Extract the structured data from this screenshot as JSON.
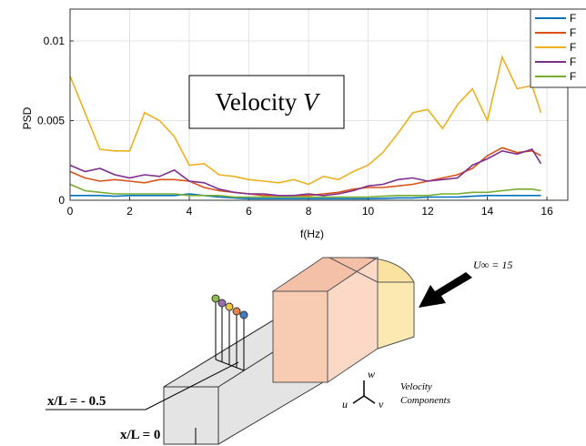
{
  "chart_data": {
    "type": "line",
    "x": [
      0,
      0.5,
      1,
      1.5,
      2,
      2.5,
      3,
      3.5,
      4,
      4.5,
      5,
      5.5,
      6,
      6.5,
      7,
      7.5,
      8,
      8.5,
      9,
      9.5,
      10,
      10.5,
      11,
      11.5,
      12,
      12.5,
      13,
      13.5,
      14,
      14.5,
      15,
      15.5,
      15.8
    ],
    "series": [
      {
        "name": "F",
        "color": "#0072bd",
        "values": [
          0.0003,
          0.0003,
          0.0003,
          0.00025,
          0.0003,
          0.0003,
          0.0003,
          0.0003,
          0.0004,
          0.0003,
          0.0002,
          0.00015,
          0.0001,
          0.0001,
          0.0001,
          0.0001,
          0.0001,
          0.0001,
          0.0001,
          0.0001,
          0.0001,
          0.00012,
          0.00015,
          0.00015,
          0.0002,
          0.0002,
          0.0002,
          0.00025,
          0.0003,
          0.0003,
          0.0003,
          0.0003,
          0.0003
        ]
      },
      {
        "name": "F",
        "color": "#d95319",
        "values": [
          0.0018,
          0.0014,
          0.0012,
          0.0013,
          0.0012,
          0.0011,
          0.0013,
          0.0013,
          0.0012,
          0.0008,
          0.0006,
          0.0005,
          0.0004,
          0.0003,
          0.0003,
          0.0003,
          0.0003,
          0.0004,
          0.0005,
          0.0007,
          0.0008,
          0.0008,
          0.0009,
          0.001,
          0.0012,
          0.0014,
          0.0016,
          0.002,
          0.0028,
          0.0033,
          0.003,
          0.0031,
          0.0028
        ]
      },
      {
        "name": "F",
        "color": "#edb120",
        "values": [
          0.0078,
          0.0055,
          0.0032,
          0.0031,
          0.0031,
          0.0055,
          0.005,
          0.004,
          0.0022,
          0.0023,
          0.0016,
          0.0015,
          0.0013,
          0.0012,
          0.0011,
          0.0013,
          0.001,
          0.0015,
          0.0013,
          0.0018,
          0.0022,
          0.003,
          0.0042,
          0.0055,
          0.0057,
          0.0045,
          0.006,
          0.007,
          0.005,
          0.009,
          0.007,
          0.0072,
          0.0055
        ]
      },
      {
        "name": "F",
        "color": "#7e2f8e",
        "values": [
          0.0022,
          0.0018,
          0.002,
          0.0016,
          0.0014,
          0.0016,
          0.0015,
          0.0019,
          0.0012,
          0.0011,
          0.0007,
          0.0005,
          0.0004,
          0.0004,
          0.0003,
          0.0003,
          0.0004,
          0.0003,
          0.0004,
          0.0006,
          0.0009,
          0.001,
          0.0013,
          0.0014,
          0.0012,
          0.0013,
          0.0014,
          0.0022,
          0.0026,
          0.0031,
          0.0029,
          0.0032,
          0.0023
        ]
      },
      {
        "name": "F",
        "color": "#77ac30",
        "values": [
          0.001,
          0.0006,
          0.0005,
          0.0004,
          0.0004,
          0.0004,
          0.0004,
          0.0004,
          0.0003,
          0.0003,
          0.0003,
          0.0002,
          0.0002,
          0.0002,
          0.0002,
          0.0002,
          0.0002,
          0.0002,
          0.0002,
          0.0002,
          0.0002,
          0.00025,
          0.0003,
          0.0003,
          0.0003,
          0.0004,
          0.0004,
          0.0005,
          0.0005,
          0.0006,
          0.0007,
          0.0007,
          0.0006
        ]
      }
    ],
    "xlabel": "f(Hz)",
    "ylabel": "PSD",
    "annotation": {
      "text": "Velocity",
      "symbol": "V"
    },
    "xlim": [
      0,
      16.7
    ],
    "ylim": [
      0,
      0.012
    ],
    "xticks": [
      0,
      2,
      4,
      6,
      8,
      10,
      12,
      14,
      16
    ],
    "yticks": [
      0,
      0.005,
      0.01
    ],
    "grid": true
  },
  "diagram": {
    "freestream": "U∞ = 15",
    "axis_w": "w",
    "axis_u": "u",
    "axis_v": "v",
    "components_1": "Velocity",
    "components_2": "Components",
    "station_1": "x/L = - 0.5",
    "station_2": "x/L = 0"
  }
}
